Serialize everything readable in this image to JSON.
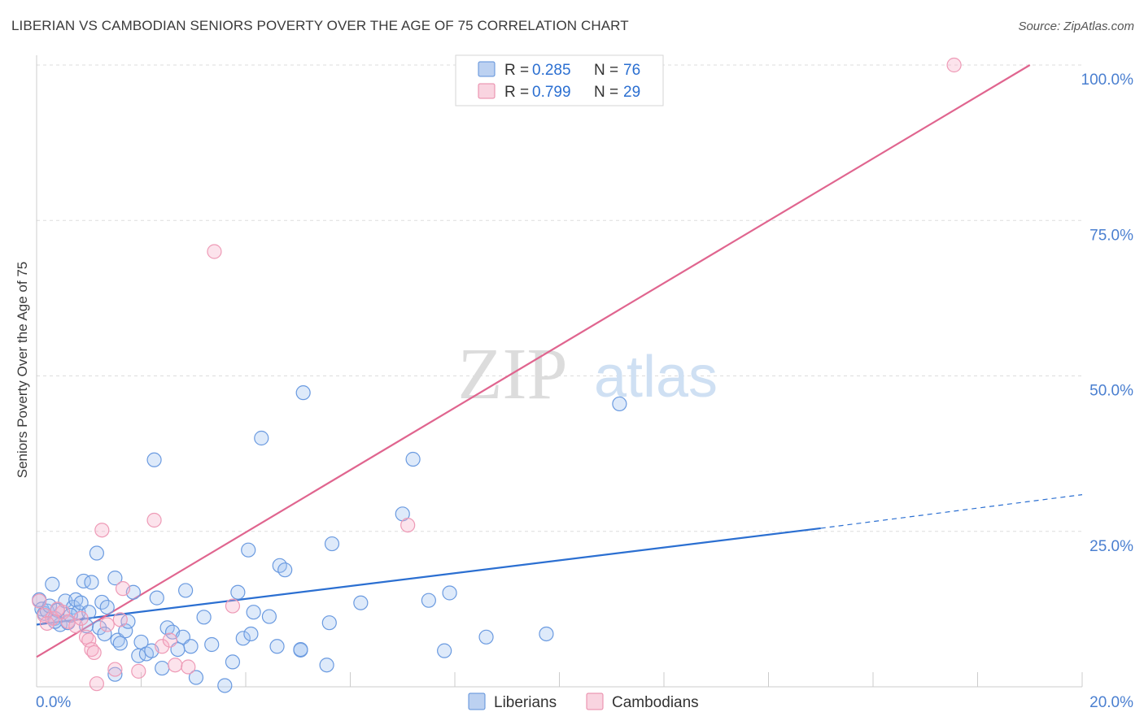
{
  "title": "LIBERIAN VS CAMBODIAN SENIORS POVERTY OVER THE AGE OF 75 CORRELATION CHART",
  "source": "Source: ZipAtlas.com",
  "watermark": {
    "zip": "ZIP",
    "atlas": "atlas"
  },
  "chart_data": {
    "type": "scatter",
    "title": "LIBERIAN VS CAMBODIAN SENIORS POVERTY OVER THE AGE OF 75 CORRELATION CHART",
    "xlabel": "",
    "ylabel": "Seniors Poverty Over the Age of 75",
    "xlim": [
      0,
      20
    ],
    "ylim": [
      0,
      100
    ],
    "x_tick_labels": [
      {
        "value": 0,
        "label": "0.0%"
      },
      {
        "value": 20,
        "label": "20.0%"
      }
    ],
    "y_tick_labels": [
      {
        "value": 25,
        "label": "25.0%"
      },
      {
        "value": 50,
        "label": "50.0%"
      },
      {
        "value": 75,
        "label": "75.0%"
      },
      {
        "value": 100,
        "label": "100.0%"
      }
    ],
    "legend_stats": [
      {
        "r_label": "R = ",
        "r_value": "0.285",
        "n_label": "N = ",
        "n_value": "76",
        "color": "#8fb3e8",
        "stroke": "#5b8fd9"
      },
      {
        "r_label": "R = ",
        "r_value": "0.799",
        "n_label": "N = ",
        "n_value": "29",
        "color": "#f5b8cb",
        "stroke": "#e886a6"
      }
    ],
    "series": [
      {
        "name": "Liberians",
        "color": "#6a9ae0",
        "trend": {
          "x0": 0,
          "y0": 10.0,
          "x1": 15.0,
          "y1": 25.5,
          "dash_to_x": 20.0,
          "dash_to_y": 30.9,
          "color": "#2b6fd1"
        },
        "points": [
          [
            0.05,
            14.0
          ],
          [
            0.1,
            12.5
          ],
          [
            0.15,
            11.8
          ],
          [
            0.2,
            12.2
          ],
          [
            0.25,
            13.0
          ],
          [
            0.3,
            16.5
          ],
          [
            0.35,
            11.0
          ],
          [
            0.4,
            12.3
          ],
          [
            0.45,
            10.0
          ],
          [
            0.55,
            13.8
          ],
          [
            0.6,
            10.3
          ],
          [
            0.7,
            12.8
          ],
          [
            0.75,
            14.0
          ],
          [
            0.8,
            12.0
          ],
          [
            0.85,
            13.5
          ],
          [
            0.9,
            17.0
          ],
          [
            0.95,
            9.8
          ],
          [
            1.0,
            12.0
          ],
          [
            1.05,
            16.8
          ],
          [
            1.15,
            21.5
          ],
          [
            1.2,
            9.5
          ],
          [
            1.25,
            13.6
          ],
          [
            1.3,
            8.5
          ],
          [
            1.35,
            12.8
          ],
          [
            1.5,
            17.5
          ],
          [
            1.55,
            7.5
          ],
          [
            1.6,
            7.0
          ],
          [
            1.7,
            9.0
          ],
          [
            1.75,
            10.5
          ],
          [
            1.85,
            15.2
          ],
          [
            1.95,
            5.0
          ],
          [
            2.0,
            7.2
          ],
          [
            2.1,
            5.3
          ],
          [
            2.2,
            5.8
          ],
          [
            2.3,
            14.3
          ],
          [
            2.25,
            36.5
          ],
          [
            2.4,
            3.0
          ],
          [
            2.5,
            9.5
          ],
          [
            2.6,
            8.8
          ],
          [
            2.8,
            8.0
          ],
          [
            2.85,
            15.5
          ],
          [
            2.95,
            6.5
          ],
          [
            3.05,
            1.5
          ],
          [
            3.2,
            11.2
          ],
          [
            3.35,
            6.8
          ],
          [
            3.6,
            0.2
          ],
          [
            3.75,
            4.0
          ],
          [
            3.85,
            15.2
          ],
          [
            3.95,
            7.8
          ],
          [
            4.05,
            22.0
          ],
          [
            4.1,
            8.5
          ],
          [
            4.15,
            12.0
          ],
          [
            4.3,
            40.0
          ],
          [
            4.45,
            11.3
          ],
          [
            4.6,
            6.5
          ],
          [
            4.65,
            19.5
          ],
          [
            4.75,
            18.8
          ],
          [
            5.05,
            5.9
          ],
          [
            5.1,
            47.3
          ],
          [
            5.55,
            3.5
          ],
          [
            5.6,
            10.3
          ],
          [
            5.65,
            23.0
          ],
          [
            6.2,
            13.5
          ],
          [
            7.0,
            27.8
          ],
          [
            7.2,
            36.6
          ],
          [
            7.5,
            13.9
          ],
          [
            7.8,
            5.8
          ],
          [
            7.9,
            15.1
          ],
          [
            8.6,
            8.0
          ],
          [
            9.75,
            8.5
          ],
          [
            11.15,
            45.5
          ],
          [
            5.05,
            6.0
          ],
          [
            1.5,
            2.0
          ],
          [
            0.35,
            10.5
          ],
          [
            0.65,
            11.5
          ],
          [
            2.7,
            6.0
          ]
        ]
      },
      {
        "name": "Cambodians",
        "color": "#f0a3bd",
        "trend": {
          "x0": 0,
          "y0": 4.8,
          "x1": 19.0,
          "y1": 100.0,
          "color": "#e0658f"
        },
        "points": [
          [
            0.05,
            13.8
          ],
          [
            0.15,
            11.5
          ],
          [
            0.3,
            11.0
          ],
          [
            0.5,
            12.0
          ],
          [
            0.6,
            10.5
          ],
          [
            0.75,
            9.8
          ],
          [
            0.85,
            11.0
          ],
          [
            0.95,
            8.0
          ],
          [
            1.0,
            7.5
          ],
          [
            1.05,
            6.0
          ],
          [
            1.1,
            5.5
          ],
          [
            1.15,
            0.5
          ],
          [
            1.25,
            25.2
          ],
          [
            1.35,
            10.0
          ],
          [
            1.5,
            2.8
          ],
          [
            1.6,
            10.8
          ],
          [
            1.65,
            15.8
          ],
          [
            1.95,
            2.5
          ],
          [
            2.25,
            26.8
          ],
          [
            2.4,
            6.5
          ],
          [
            2.55,
            7.5
          ],
          [
            2.65,
            3.5
          ],
          [
            2.9,
            3.2
          ],
          [
            3.75,
            13.0
          ],
          [
            3.4,
            70.0
          ],
          [
            7.1,
            26.0
          ],
          [
            17.55,
            100.0
          ],
          [
            0.4,
            12.5
          ],
          [
            0.2,
            10.2
          ]
        ]
      }
    ]
  }
}
